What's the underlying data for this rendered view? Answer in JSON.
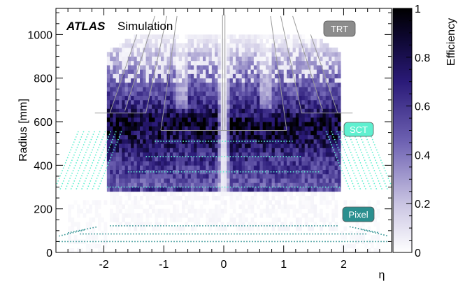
{
  "chart_data": {
    "type": "heatmap",
    "annotation": {
      "experiment": "ATLAS",
      "label": "Simulation"
    },
    "xlabel": "η",
    "ylabel": "Radius [mm]",
    "zlabel": "Efficiency",
    "xlim": [
      -2.8,
      2.8
    ],
    "ylim": [
      0,
      1120
    ],
    "zlim": [
      0,
      1
    ],
    "x_ticks": [
      "-2",
      "-1",
      "0",
      "1",
      "2"
    ],
    "y_ticks": [
      "0",
      "200",
      "400",
      "600",
      "800",
      "1000"
    ],
    "z_ticks": [
      "0",
      "0.2",
      "0.4",
      "0.6",
      "0.8",
      "1"
    ],
    "colorscale": [
      "#ffffff",
      "#c9c4e2",
      "#6f63b3",
      "#2a1a78",
      "#0d0730",
      "#000000"
    ],
    "detector_labels": [
      {
        "name": "TRT",
        "color": "#8c8c8c"
      },
      {
        "name": "SCT",
        "color": "#5ff0d0"
      },
      {
        "name": "Pixel",
        "color": "#2a8f8f"
      }
    ],
    "efficiency_profile": {
      "radius_bins_mm": [
        0,
        100,
        200,
        260,
        290,
        350,
        400,
        450,
        500,
        550,
        600,
        650,
        700,
        750,
        800,
        850,
        900,
        950,
        1000
      ],
      "mean_efficiency_central": [
        0.0,
        0.02,
        0.05,
        0.1,
        0.45,
        0.55,
        0.6,
        0.65,
        0.75,
        0.85,
        0.9,
        0.7,
        0.6,
        0.5,
        0.45,
        0.35,
        0.25,
        0.15,
        0.05
      ]
    }
  }
}
